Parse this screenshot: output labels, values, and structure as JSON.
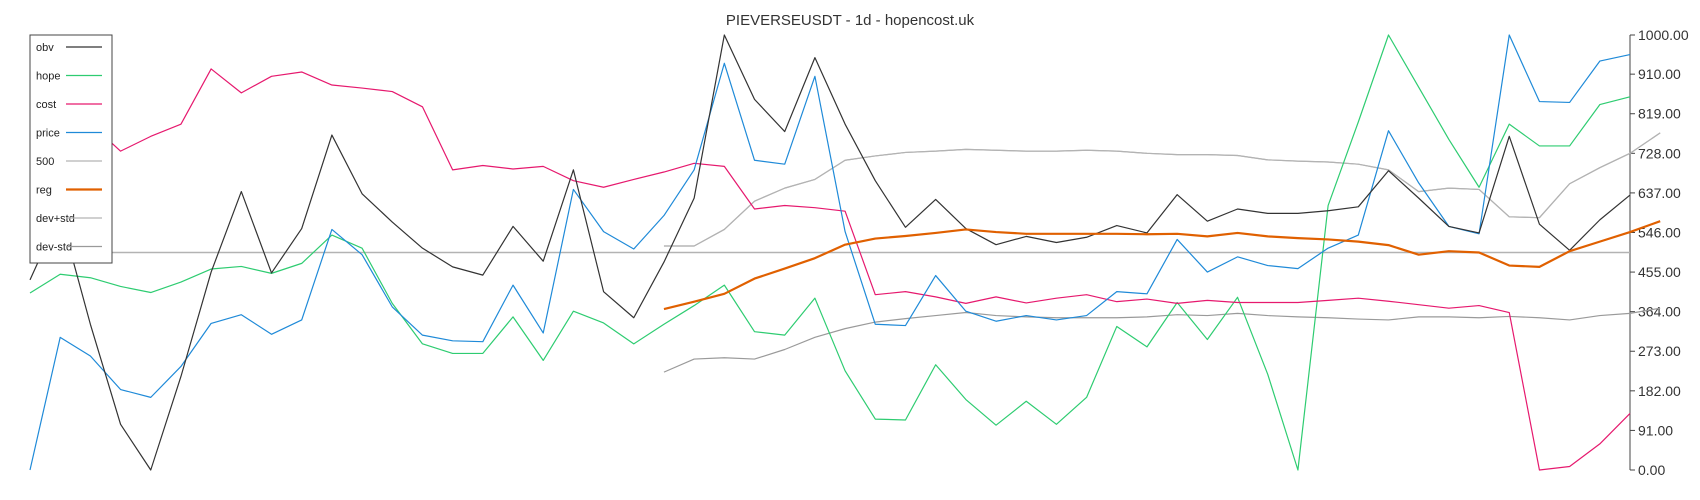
{
  "chart_data": {
    "type": "line",
    "title": "PIEVERSEUSDT - 1d - hopencost.uk",
    "ylim": [
      0,
      1000
    ],
    "y_ticks": [
      "0.00",
      "91.00",
      "182.00",
      "273.00",
      "364.00",
      "455.00",
      "546.00",
      "637.00",
      "728.00",
      "819.00",
      "910.00",
      "1000.00"
    ],
    "y_tick_values": [
      0,
      91,
      182,
      273,
      364,
      455,
      546,
      637,
      728,
      819,
      910,
      1000
    ],
    "x_count": 54,
    "hline": 500,
    "legend": {
      "position": "top-left"
    },
    "series": [
      {
        "name": "obv",
        "color": "#333333",
        "width": 1.2,
        "start": 0,
        "values": [
          437,
          590,
          335,
          105,
          0,
          215,
          455,
          640,
          453,
          555,
          770,
          635,
          570,
          510,
          467,
          448,
          560,
          480,
          690,
          410,
          350,
          478,
          625,
          1000,
          852,
          778,
          948,
          795,
          665,
          558,
          622,
          555,
          518,
          537,
          523,
          535,
          562,
          545,
          633,
          572,
          600,
          590,
          590,
          596,
          605,
          688,
          625,
          560,
          545,
          767,
          565,
          505,
          575,
          632
        ]
      },
      {
        "name": "hope",
        "color": "#2ecc71",
        "width": 1.2,
        "start": 0,
        "values": [
          407,
          450,
          442,
          422,
          408,
          432,
          462,
          468,
          452,
          475,
          540,
          510,
          383,
          290,
          268,
          268,
          352,
          252,
          365,
          338,
          290,
          335,
          378,
          425,
          318,
          310,
          395,
          228,
          117,
          115,
          242,
          162,
          103,
          158,
          105,
          167,
          330,
          283,
          385,
          300,
          397,
          220,
          0,
          608,
          800,
          1000,
          880,
          760,
          650,
          795,
          745,
          745,
          840,
          858
        ]
      },
      {
        "name": "cost",
        "color": "#e6196e",
        "width": 1.2,
        "start": 0,
        "values": [
          840,
          833,
          797,
          733,
          767,
          795,
          922,
          867,
          905,
          915,
          885,
          878,
          870,
          835,
          690,
          700,
          692,
          698,
          665,
          650,
          668,
          685,
          705,
          698,
          600,
          608,
          603,
          595,
          403,
          410,
          398,
          383,
          398,
          384,
          395,
          403,
          387,
          393,
          383,
          390,
          385,
          385,
          385,
          390,
          395,
          388,
          380,
          372,
          378,
          362,
          0,
          8,
          60,
          130
        ]
      },
      {
        "name": "price",
        "color": "#1f8ad8",
        "width": 1.2,
        "start": 0,
        "values": [
          0,
          305,
          262,
          185,
          167,
          238,
          337,
          357,
          312,
          345,
          553,
          495,
          375,
          310,
          297,
          295,
          425,
          315,
          645,
          548,
          508,
          585,
          690,
          935,
          712,
          703,
          905,
          548,
          335,
          332,
          447,
          365,
          342,
          355,
          345,
          355,
          410,
          405,
          530,
          455,
          490,
          470,
          463,
          510,
          540,
          780,
          660,
          560,
          543,
          1000,
          847,
          845,
          940,
          955
        ]
      },
      {
        "name": "500",
        "color": "#b3b3b3",
        "width": 1.2,
        "start": 21,
        "values": [
          515,
          515,
          553,
          618,
          648,
          668,
          712,
          722,
          730,
          733,
          737,
          735,
          733,
          733,
          735,
          733,
          728,
          725,
          725,
          723,
          713,
          710,
          708,
          703,
          690,
          640,
          648,
          645,
          582,
          580,
          658,
          695,
          728,
          775
        ]
      },
      {
        "name": "reg",
        "color": "#e06000",
        "width": 2.2,
        "start": 21,
        "values": [
          370,
          387,
          405,
          440,
          463,
          487,
          518,
          532,
          538,
          545,
          553,
          547,
          543,
          543,
          543,
          543,
          542,
          543,
          537,
          545,
          537,
          533,
          530,
          525,
          517,
          495,
          503,
          500,
          470,
          467,
          503,
          525,
          547,
          572
        ]
      },
      {
        "name": "dev+std",
        "color": "#b3b3b3",
        "width": 1.2,
        "start": 21,
        "values": [
          515,
          515,
          553,
          618,
          648,
          668,
          712,
          722,
          730,
          733,
          737,
          735,
          733,
          733,
          735,
          733,
          728,
          725,
          725,
          723,
          713,
          710,
          708,
          703,
          690,
          640,
          648,
          645,
          582,
          580,
          658,
          695,
          728,
          775
        ]
      },
      {
        "name": "dev-std",
        "color": "#9a9a9a",
        "width": 1.2,
        "start": 21,
        "values": [
          225,
          255,
          258,
          255,
          277,
          305,
          325,
          340,
          348,
          355,
          362,
          355,
          352,
          350,
          350,
          350,
          352,
          357,
          355,
          360,
          355,
          352,
          350,
          347,
          345,
          352,
          352,
          350,
          353,
          350,
          345,
          355,
          360,
          372
        ]
      }
    ]
  }
}
